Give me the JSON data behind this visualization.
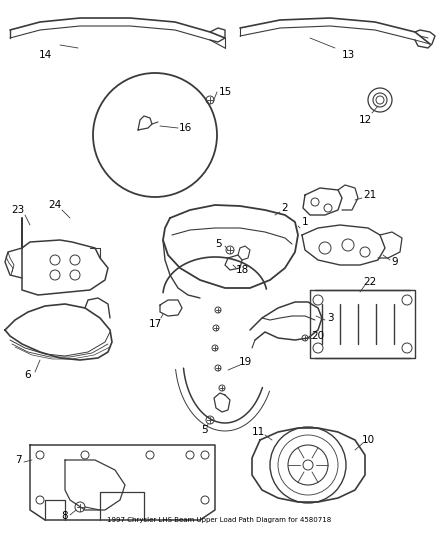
{
  "title": "1997 Chrysler LHS Beam Upper Load Path Diagram for 4580718",
  "bg": "#ffffff",
  "lc": "#3a3a3a",
  "tc": "#000000",
  "fig_w": 4.38,
  "fig_h": 5.33,
  "dpi": 100
}
